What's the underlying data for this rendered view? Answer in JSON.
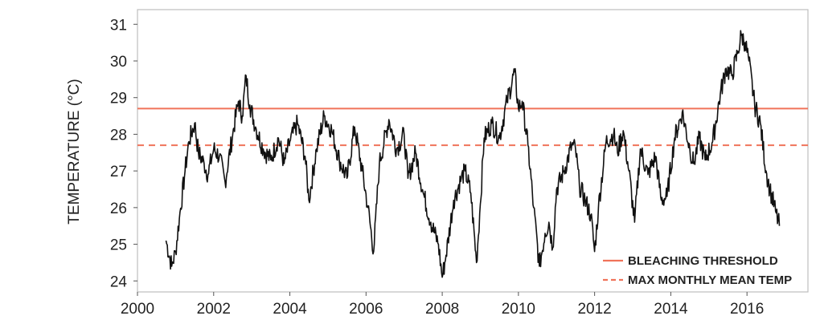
{
  "chart_data": {
    "type": "line",
    "ylabel": "TEMPERATURE (°C)",
    "xlabel": "",
    "xlim": [
      2000,
      2017.6
    ],
    "ylim": [
      23.7,
      31.4
    ],
    "x_ticks": [
      "2000",
      "2002",
      "2004",
      "2006",
      "2008",
      "2010",
      "2012",
      "2014",
      "2016"
    ],
    "y_ticks": [
      "24",
      "25",
      "26",
      "27",
      "28",
      "29",
      "30",
      "31"
    ],
    "grid": false,
    "legend_position": "bottom-right",
    "reference_lines": [
      {
        "name": "BLEACHING THRESHOLD",
        "value": 28.7,
        "style": "solid",
        "color": "#f0735a"
      },
      {
        "name": "MAX MONTHLY MEAN TEMP",
        "value": 27.7,
        "style": "dashed",
        "color": "#f0735a"
      }
    ],
    "series": [
      {
        "color": "#111111",
        "x": [
          2000.75,
          2000.9,
          2001.0,
          2001.1,
          2001.25,
          2001.35,
          2001.5,
          2001.6,
          2001.75,
          2001.85,
          2002.0,
          2002.15,
          2002.3,
          2002.5,
          2002.65,
          2002.75,
          2002.85,
          2002.95,
          2003.1,
          2003.3,
          2003.5,
          2003.7,
          2003.85,
          2004.0,
          2004.2,
          2004.4,
          2004.5,
          2004.7,
          2004.9,
          2005.1,
          2005.3,
          2005.5,
          2005.7,
          2005.9,
          2006.05,
          2006.2,
          2006.35,
          2006.6,
          2006.8,
          2007.0,
          2007.1,
          2007.3,
          2007.5,
          2007.7,
          2007.9,
          2008.0,
          2008.1,
          2008.3,
          2008.5,
          2008.6,
          2008.75,
          2008.9,
          2009.0,
          2009.1,
          2009.3,
          2009.5,
          2009.7,
          2009.9,
          2010.0,
          2010.1,
          2010.25,
          2010.4,
          2010.55,
          2010.7,
          2010.8,
          2010.9,
          2011.0,
          2011.2,
          2011.4,
          2011.5,
          2011.6,
          2011.75,
          2011.9,
          2012.0,
          2012.1,
          2012.3,
          2012.5,
          2012.6,
          2012.75,
          2012.9,
          2013.05,
          2013.2,
          2013.4,
          2013.6,
          2013.75,
          2013.9,
          2014.1,
          2014.3,
          2014.5,
          2014.6,
          2014.75,
          2014.9,
          2015.1,
          2015.3,
          2015.45,
          2015.6,
          2015.75,
          2015.85,
          2015.95,
          2016.05,
          2016.2,
          2016.35,
          2016.5,
          2016.6,
          2016.75,
          2016.85
        ],
        "values": [
          25.1,
          24.4,
          24.8,
          25.7,
          27.0,
          27.8,
          28.3,
          27.5,
          27.2,
          26.9,
          27.6,
          27.4,
          26.7,
          28.0,
          28.9,
          28.5,
          29.6,
          28.8,
          28.2,
          27.6,
          27.3,
          27.9,
          27.2,
          27.8,
          28.3,
          27.4,
          26.2,
          27.6,
          28.5,
          28.1,
          27.3,
          26.8,
          28.2,
          27.0,
          26.0,
          24.8,
          27.2,
          28.4,
          27.6,
          28.0,
          26.8,
          27.5,
          26.4,
          25.6,
          25.0,
          24.1,
          24.7,
          26.2,
          26.8,
          27.0,
          26.4,
          24.5,
          26.1,
          27.9,
          28.3,
          27.9,
          28.9,
          29.7,
          28.7,
          28.9,
          27.7,
          26.0,
          24.4,
          25.3,
          25.6,
          24.9,
          26.5,
          27.0,
          27.7,
          27.6,
          26.6,
          26.2,
          25.8,
          24.8,
          26.0,
          27.8,
          28.0,
          27.5,
          28.1,
          27.0,
          25.6,
          27.6,
          26.9,
          27.4,
          26.2,
          26.3,
          27.9,
          28.6,
          27.6,
          27.2,
          27.9,
          27.3,
          27.8,
          29.1,
          29.8,
          29.6,
          30.2,
          30.7,
          30.5,
          30.0,
          28.8,
          28.3,
          27.0,
          26.5,
          25.9,
          25.5
        ]
      }
    ]
  }
}
